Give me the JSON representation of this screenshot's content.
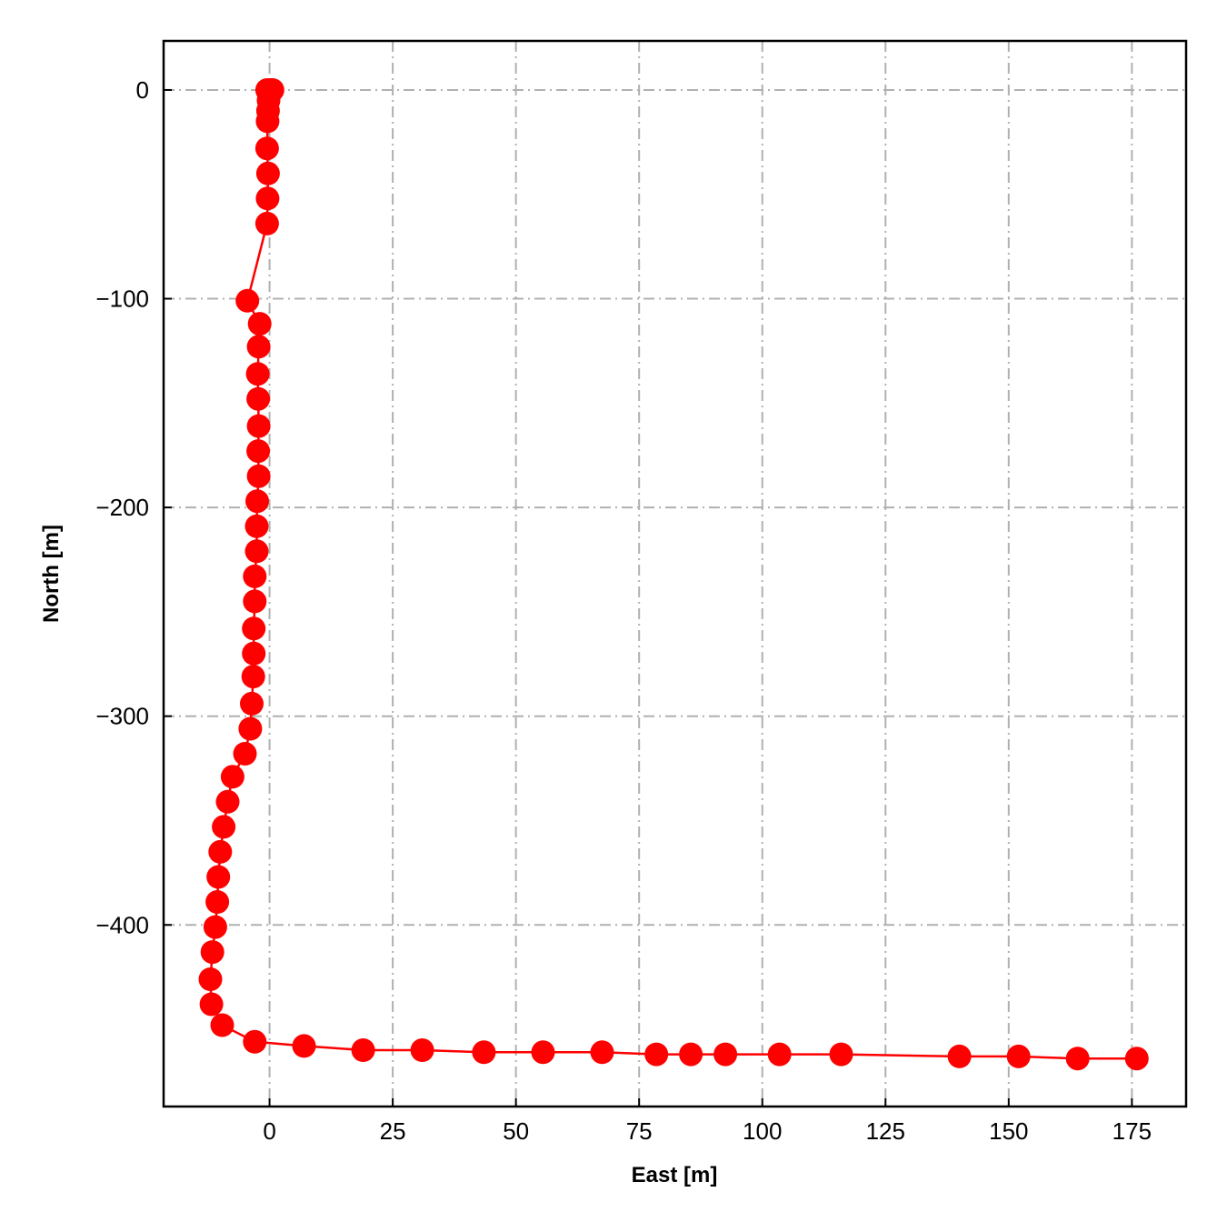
{
  "chart_data": {
    "type": "line",
    "title": "",
    "xlabel": "East [m]",
    "ylabel": "North [m]",
    "xlim": [
      -21.5,
      186
    ],
    "ylim": [
      -487,
      23.5
    ],
    "xticks": [
      0,
      25,
      50,
      75,
      100,
      125,
      150,
      175
    ],
    "yticks": [
      0,
      -100,
      -200,
      -300,
      -400
    ],
    "xtick_labels": [
      "0",
      "25",
      "50",
      "75",
      "100",
      "125",
      "150",
      "175"
    ],
    "ytick_labels": [
      "0",
      "−100",
      "−200",
      "−300",
      "−400"
    ],
    "grid": true,
    "grid_style": "dash-dot",
    "legend": "none",
    "series": [
      {
        "color": "#ff0000",
        "marker": "circle",
        "x": [
          -0.5,
          0.1,
          0.6,
          0.3,
          -0.2,
          -0.3,
          -0.4,
          -0.5,
          -0.3,
          -0.4,
          -0.5,
          -4.5,
          -2.0,
          -2.2,
          -2.4,
          -2.3,
          -2.2,
          -2.3,
          -2.2,
          -2.5,
          -2.6,
          -2.6,
          -3.0,
          -3.0,
          -3.2,
          -3.2,
          -3.3,
          -3.6,
          -3.9,
          -5.0,
          -7.5,
          -8.5,
          -9.3,
          -10.0,
          -10.4,
          -10.6,
          -11.0,
          -11.6,
          -12.0,
          -11.8,
          -9.6,
          -3.0,
          7.0,
          19.0,
          31.0,
          43.5,
          55.5,
          67.5,
          78.5,
          85.5,
          92.5,
          103.5,
          116.0,
          140.0,
          152.0,
          164.0,
          176.0
        ],
        "y": [
          0,
          0,
          0,
          0,
          -5,
          -10,
          -15,
          -28,
          -40,
          -52,
          -64,
          -101,
          -112,
          -123,
          -136,
          -148,
          -161,
          -173,
          -185,
          -197,
          -209,
          -221,
          -233,
          -245,
          -258,
          -270,
          -281,
          -294,
          -306,
          -318,
          -329,
          -341,
          -353,
          -365,
          -377,
          -389,
          -401,
          -413,
          -426,
          -438,
          -448,
          -456,
          -458,
          -460,
          -460,
          -461,
          -461,
          -461,
          -462,
          -462,
          -462,
          -462,
          -462,
          -463,
          -463,
          -464,
          -464
        ]
      }
    ]
  }
}
